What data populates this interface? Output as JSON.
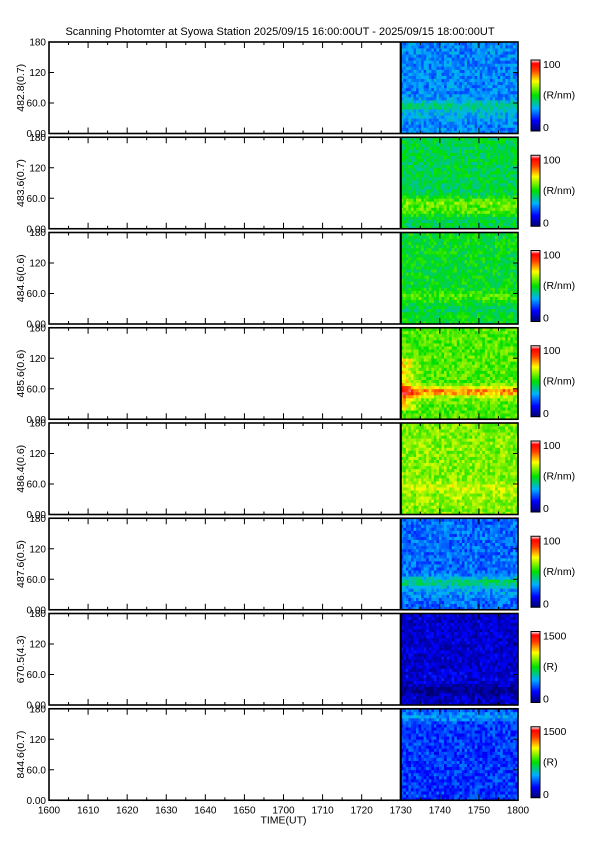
{
  "chart_data": {
    "type": "heatmap",
    "title": "Scanning Photomter at Syowa Station 2025/09/15 16:00:00UT - 2025/09/15 18:00:00UT",
    "xlabel": "TIME(UT)",
    "x_ticks": [
      "1600",
      "1610",
      "1620",
      "1630",
      "1640",
      "1650",
      "1700",
      "1710",
      "1720",
      "1730",
      "1740",
      "1750",
      "1800"
    ],
    "xlim": [
      "16:00",
      "18:00"
    ],
    "data_start": "17:30",
    "ylim": [
      0,
      180
    ],
    "y_ticks": [
      "0.00",
      "60.0",
      "120",
      "180"
    ],
    "panels": [
      {
        "ylabel": "482.8(0.7)",
        "cbar_max": "100",
        "cbar_min": "0",
        "cbar_unit": "(R/nm)",
        "level": 0.28,
        "bands": [
          [
            55,
            0.42
          ],
          [
            35,
            0.32
          ]
        ]
      },
      {
        "ylabel": "483.6(0.7)",
        "cbar_max": "100",
        "cbar_min": "0",
        "cbar_unit": "(R/nm)",
        "level": 0.45,
        "bands": [
          [
            52,
            0.58
          ],
          [
            35,
            0.55
          ]
        ]
      },
      {
        "ylabel": "484.6(0.6)",
        "cbar_max": "100",
        "cbar_min": "0",
        "cbar_unit": "(R/nm)",
        "level": 0.48,
        "bands": [
          [
            55,
            0.55
          ],
          [
            30,
            0.45
          ]
        ]
      },
      {
        "ylabel": "485.6(0.6)",
        "cbar_max": "100",
        "cbar_min": "0",
        "cbar_unit": "(R/nm)",
        "level": 0.56,
        "bands": [
          [
            55,
            0.8
          ]
        ]
      },
      {
        "ylabel": "486.4(0.6)",
        "cbar_max": "100",
        "cbar_min": "0",
        "cbar_unit": "(R/nm)",
        "level": 0.6,
        "bands": [
          [
            55,
            0.66
          ],
          [
            30,
            0.62
          ]
        ]
      },
      {
        "ylabel": "487.6(0.5)",
        "cbar_max": "100",
        "cbar_min": "0",
        "cbar_unit": "(R/nm)",
        "level": 0.25,
        "bands": [
          [
            55,
            0.42
          ],
          [
            35,
            0.3
          ]
        ]
      },
      {
        "ylabel": "670.5(4.3)",
        "cbar_max": "1500",
        "cbar_min": "0",
        "cbar_unit": "(R)",
        "level": 0.1,
        "bands": [
          [
            55,
            0.12
          ],
          [
            30,
            0.02
          ]
        ]
      },
      {
        "ylabel": "844.6(0.7)",
        "cbar_max": "1500",
        "cbar_min": "0",
        "cbar_unit": "(R)",
        "level": 0.2,
        "bands": [
          [
            165,
            0.3
          ],
          [
            45,
            0.2
          ]
        ]
      }
    ]
  }
}
